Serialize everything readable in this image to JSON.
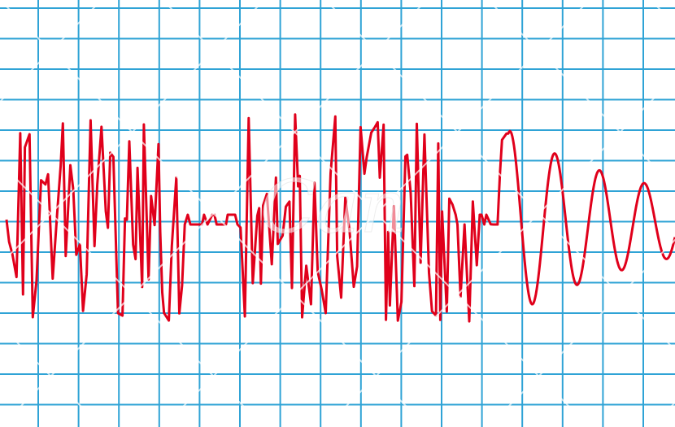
{
  "watermark": "Can"
}
